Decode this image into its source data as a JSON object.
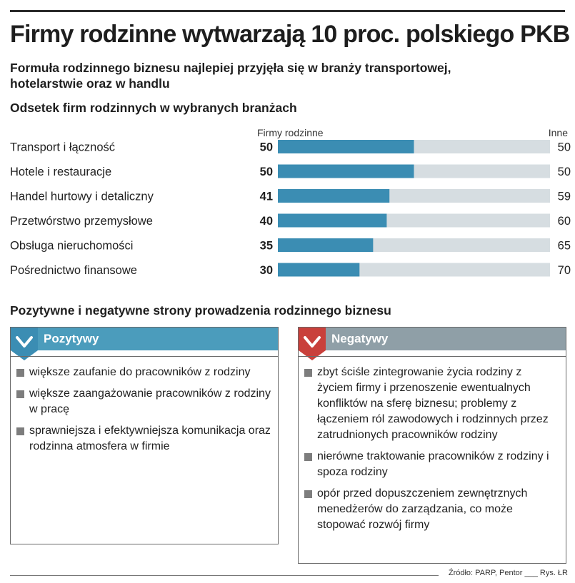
{
  "title": "Firmy rodzinne wytwarzają 10 proc. polskiego PKB",
  "subtitle": "Formuła rodzinnego biznesu najlepiej przyjęła się w branży transportowej, hotelarstwie oraz w handlu",
  "source": "Źródło: PARP, Pentor ___ Rys. ŁR",
  "colors": {
    "family_bar": "#3b8db3",
    "others_bar": "#d6dde1",
    "positive_header": "#4b9cbc",
    "negative_header": "#8f9fa7",
    "negative_chip": "#c9403b"
  },
  "chart_data": {
    "type": "bar",
    "title": "Odsetek firm rodzinnych w wybranych branżach",
    "orientation": "horizontal",
    "stacked": true,
    "categories": [
      "Transport i łączność",
      "Hotele i restauracje",
      "Handel hurtowy i detaliczny",
      "Przetwórstwo przemysłowe",
      "Obsługa nieruchomości",
      "Pośrednictwo finansowe"
    ],
    "series": [
      {
        "name": "Firmy rodzinne",
        "values": [
          50,
          50,
          41,
          40,
          35,
          30
        ]
      },
      {
        "name": "Inne",
        "values": [
          50,
          50,
          59,
          60,
          65,
          70
        ]
      }
    ],
    "xlim": [
      0,
      100
    ],
    "grid": false
  },
  "pros_cons": {
    "title": "Pozytywne i negatywne strony prowadzenia rodzinnego biznesu",
    "positive": {
      "label": "Pozytywy",
      "icon": "chevron-down-icon",
      "items": [
        "większe zaufanie do pracowników z rodziny",
        "większe zaangażowanie pracowników z rodziny w pracę",
        "sprawniejsza i efektywniejsza komunikacja oraz rodzinna atmosfera w firmie"
      ]
    },
    "negative": {
      "label": "Negatywy",
      "icon": "chevron-down-icon",
      "items": [
        "zbyt ściśle zintegrowanie życia rodziny z życiem firmy i przenoszenie ewentualnych konfliktów na sferę biznesu; problemy z łączeniem ról zawodowych i rodzinnych przez zatrudnionych pracowników rodziny",
        "nierówne traktowanie pracowników z rodziny i spoza rodziny",
        "opór przed dopuszczeniem zewnętrznych menedżerów do zarządzania, co może stopować rozwój firmy"
      ]
    }
  }
}
